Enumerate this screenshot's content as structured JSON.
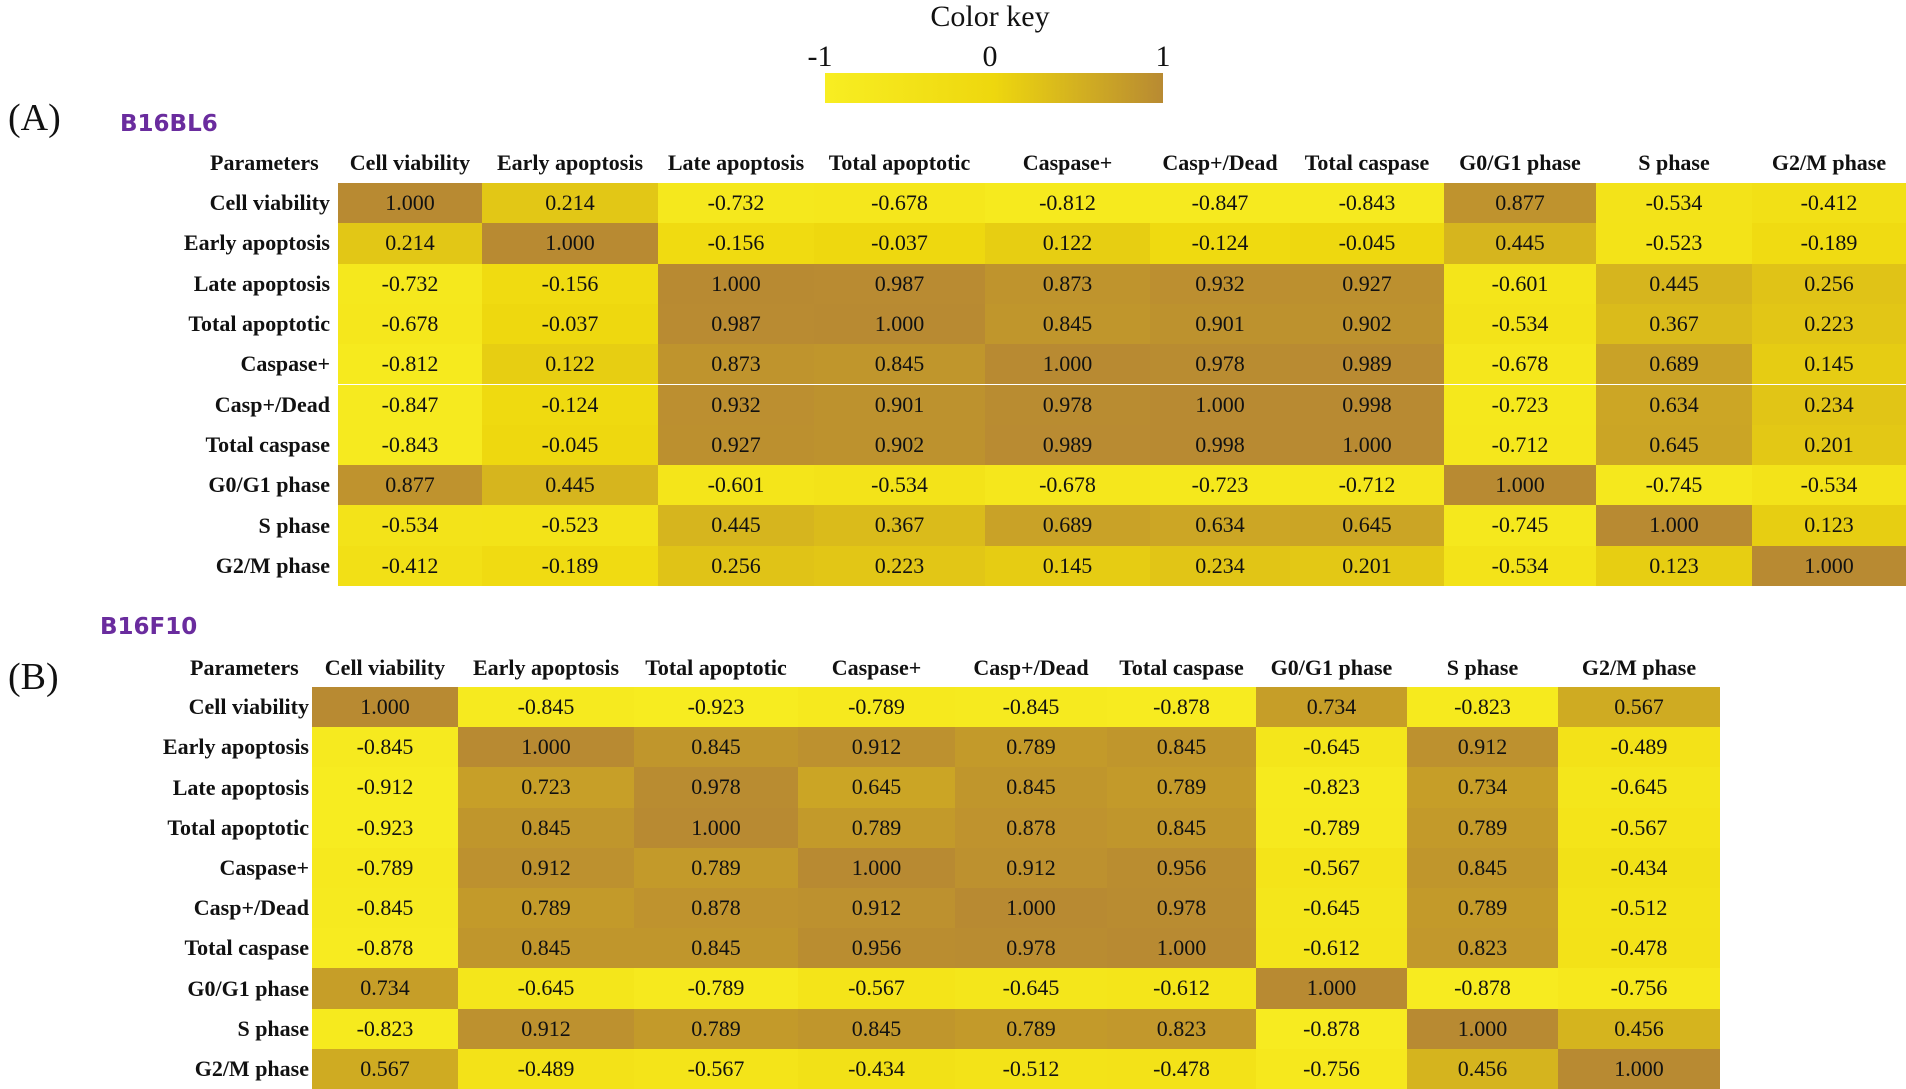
{
  "color_key": {
    "title": "Color key",
    "ticks": [
      "-1",
      "0",
      "1"
    ],
    "colors": {
      "low": "#f8ee22",
      "mid": "#eed70e",
      "high": "#b88a32"
    }
  },
  "chart_data": [
    {
      "type": "heatmap",
      "panel": "(A)",
      "cell_line": "B16BL6",
      "corner_label": "Parameters",
      "columns": [
        "Cell viability",
        "Early apoptosis",
        "Late apoptosis",
        "Total apoptotic",
        "Caspase+",
        "Casp+/Dead",
        "Total caspase",
        "G0/G1 phase",
        "S phase",
        "G2/M phase"
      ],
      "rows": [
        "Cell viability",
        "Early apoptosis",
        "Late apoptosis",
        "Total apoptotic",
        "Caspase+",
        "Casp+/Dead",
        "Total caspase",
        "G0/G1 phase",
        "S phase",
        "G2/M phase"
      ],
      "values": [
        [
          "1.000",
          "0.214",
          "-0.732",
          "-0.678",
          "-0.812",
          "-0.847",
          "-0.843",
          "0.877",
          "-0.534",
          "-0.412"
        ],
        [
          "0.214",
          "1.000",
          "-0.156",
          "-0.037",
          "0.122",
          "-0.124",
          "-0.045",
          "0.445",
          "-0.523",
          "-0.189"
        ],
        [
          "-0.732",
          "-0.156",
          "1.000",
          "0.987",
          "0.873",
          "0.932",
          "0.927",
          "-0.601",
          "0.445",
          "0.256"
        ],
        [
          "-0.678",
          "-0.037",
          "0.987",
          "1.000",
          "0.845",
          "0.901",
          "0.902",
          "-0.534",
          "0.367",
          "0.223"
        ],
        [
          "-0.812",
          "0.122",
          "0.873",
          "0.845",
          "1.000",
          "0.978",
          "0.989",
          "-0.678",
          "0.689",
          "0.145"
        ],
        [
          "-0.847",
          "-0.124",
          "0.932",
          "0.901",
          "0.978",
          "1.000",
          "0.998",
          "-0.723",
          "0.634",
          "0.234"
        ],
        [
          "-0.843",
          "-0.045",
          "0.927",
          "0.902",
          "0.989",
          "0.998",
          "1.000",
          "-0.712",
          "0.645",
          "0.201"
        ],
        [
          "0.877",
          "0.445",
          "-0.601",
          "-0.534",
          "-0.678",
          "-0.723",
          "-0.712",
          "1.000",
          "-0.745",
          "-0.534"
        ],
        [
          "-0.534",
          "-0.523",
          "0.445",
          "0.367",
          "0.689",
          "0.634",
          "0.645",
          "-0.745",
          "1.000",
          "0.123"
        ],
        [
          "-0.412",
          "-0.189",
          "0.256",
          "0.223",
          "0.145",
          "0.234",
          "0.201",
          "-0.534",
          "0.123",
          "1.000"
        ]
      ]
    },
    {
      "type": "heatmap",
      "panel": "(B)",
      "cell_line": "B16F10",
      "corner_label": "Parameters",
      "columns": [
        "Cell viability",
        "Early apoptosis",
        "Total apoptotic",
        "Caspase+",
        "Casp+/Dead",
        "Total caspase",
        "G0/G1 phase",
        "S phase",
        "G2/M phase"
      ],
      "rows": [
        "Cell viability",
        "Early apoptosis",
        "Late apoptosis",
        "Total apoptotic",
        "Caspase+",
        "Casp+/Dead",
        "Total caspase",
        "G0/G1 phase",
        "S phase",
        "G2/M phase"
      ],
      "values": [
        [
          "1.000",
          "-0.845",
          "-0.923",
          "-0.789",
          "-0.845",
          "-0.878",
          "0.734",
          "-0.823",
          "0.567"
        ],
        [
          "-0.845",
          "1.000",
          "0.845",
          "0.912",
          "0.789",
          "0.845",
          "-0.645",
          "0.912",
          "-0.489"
        ],
        [
          "-0.912",
          "0.723",
          "0.978",
          "0.645",
          "0.845",
          "0.789",
          "-0.823",
          "0.734",
          "-0.645"
        ],
        [
          "-0.923",
          "0.845",
          "1.000",
          "0.789",
          "0.878",
          "0.845",
          "-0.789",
          "0.789",
          "-0.567"
        ],
        [
          "-0.789",
          "0.912",
          "0.789",
          "1.000",
          "0.912",
          "0.956",
          "-0.567",
          "0.845",
          "-0.434"
        ],
        [
          "-0.845",
          "0.789",
          "0.878",
          "0.912",
          "1.000",
          "0.978",
          "-0.645",
          "0.789",
          "-0.512"
        ],
        [
          "-0.878",
          "0.845",
          "0.845",
          "0.956",
          "0.978",
          "1.000",
          "-0.612",
          "0.823",
          "-0.478"
        ],
        [
          "0.734",
          "-0.645",
          "-0.789",
          "-0.567",
          "-0.645",
          "-0.612",
          "1.000",
          "-0.878",
          "-0.756"
        ],
        [
          "-0.823",
          "0.912",
          "0.789",
          "0.845",
          "0.789",
          "0.823",
          "-0.878",
          "1.000",
          "0.456"
        ],
        [
          "0.567",
          "-0.489",
          "-0.567",
          "-0.434",
          "-0.512",
          "-0.478",
          "-0.756",
          "0.456",
          "1.000"
        ]
      ]
    }
  ]
}
